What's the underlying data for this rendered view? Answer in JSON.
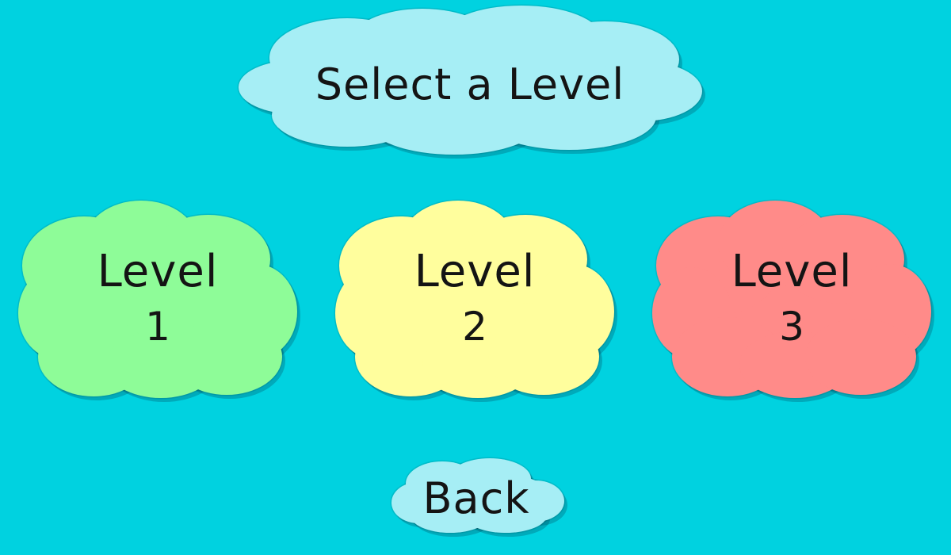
{
  "screen": {
    "background": "#00d2e0"
  },
  "title": {
    "text": "Select a Level",
    "cloud_color": "#a6eef5"
  },
  "levels": [
    {
      "label": "Level",
      "number": "1",
      "cloud_color": "#8efc98"
    },
    {
      "label": "Level",
      "number": "2",
      "cloud_color": "#fffe9d"
    },
    {
      "label": "Level",
      "number": "3",
      "cloud_color": "#ff8b89"
    }
  ],
  "back_button": {
    "label": "Back",
    "cloud_color": "#a6eef5"
  },
  "icons": [
    "cloud-icon"
  ]
}
